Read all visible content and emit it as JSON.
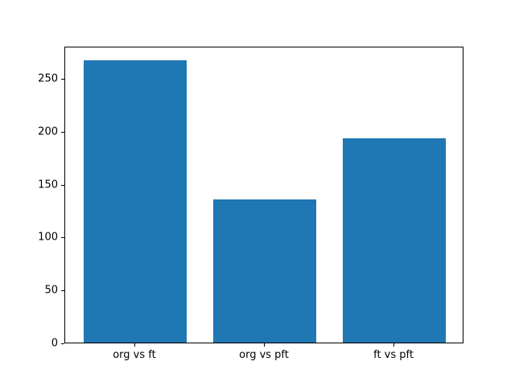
{
  "chart_data": {
    "type": "bar",
    "categories": [
      "org vs ft",
      "org vs pft",
      "ft vs pft"
    ],
    "values": [
      267,
      135,
      193
    ],
    "title": "",
    "xlabel": "",
    "ylabel": "",
    "ylim": [
      0,
      280.35
    ],
    "xlim": [
      -0.54,
      2.54
    ],
    "yticks": [
      0,
      50,
      100,
      150,
      200,
      250
    ],
    "bar_width": 0.8,
    "bar_color": "#1f77b4",
    "grid": false,
    "legend": "none"
  }
}
